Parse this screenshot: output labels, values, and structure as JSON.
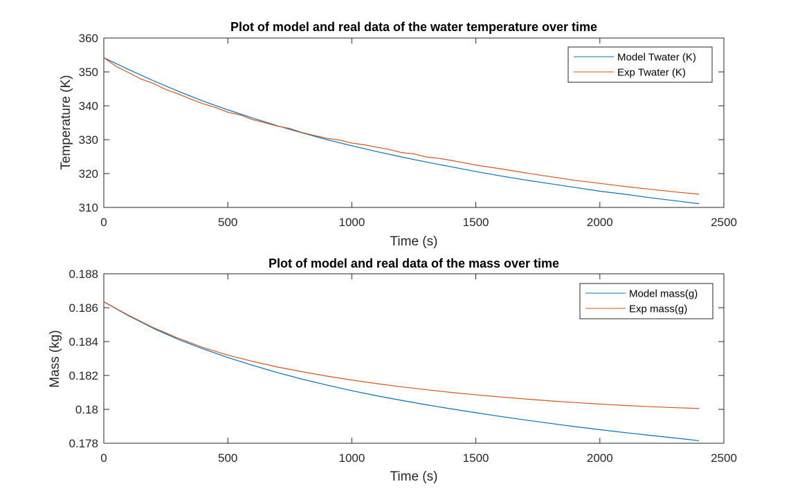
{
  "colors": {
    "model": "#0072BD",
    "exp": "#D95319",
    "axis": "#262626",
    "background": "#ffffff"
  },
  "chart_data": [
    {
      "type": "line",
      "title": "Plot of model and real data of the water temperature over time",
      "xlabel": "Time (s)",
      "ylabel": "Temperature (K)",
      "xlim": [
        0,
        2500
      ],
      "ylim": [
        310,
        360
      ],
      "xticks": [
        0,
        500,
        1000,
        1500,
        2000,
        2500
      ],
      "yticks": [
        310,
        320,
        330,
        340,
        350,
        360
      ],
      "xtick_labels": [
        "0",
        "500",
        "1000",
        "1500",
        "2000",
        "2500"
      ],
      "ytick_labels": [
        "310",
        "320",
        "330",
        "340",
        "350",
        "360"
      ],
      "grid": false,
      "legend_position": "top-right",
      "series": [
        {
          "name": "Model Twater (K)",
          "x": [
            0,
            100,
            200,
            300,
            400,
            500,
            600,
            700,
            800,
            900,
            1000,
            1100,
            1200,
            1300,
            1400,
            1500,
            1600,
            1700,
            1800,
            1900,
            2000,
            2100,
            2200,
            2300,
            2400
          ],
          "y": [
            354.2,
            350.7,
            347.4,
            344.3,
            341.4,
            338.8,
            336.4,
            334.1,
            332.0,
            330.0,
            328.2,
            326.5,
            324.9,
            323.4,
            322.0,
            320.6,
            319.3,
            318.1,
            317.0,
            315.9,
            314.8,
            313.9,
            312.9,
            312.0,
            311.1
          ]
        },
        {
          "name": "Exp Twater (K)",
          "x": [
            0,
            50,
            100,
            150,
            200,
            250,
            300,
            350,
            400,
            450,
            500,
            550,
            600,
            650,
            700,
            750,
            800,
            850,
            900,
            950,
            1000,
            1050,
            1100,
            1150,
            1200,
            1250,
            1300,
            1350,
            1400,
            1450,
            1500,
            1600,
            1700,
            1800,
            1900,
            2000,
            2100,
            2200,
            2300,
            2400
          ],
          "y": [
            354.2,
            351.6,
            349.8,
            347.9,
            346.6,
            344.8,
            343.5,
            342.0,
            340.6,
            339.5,
            338.1,
            337.3,
            335.9,
            335.0,
            334.0,
            333.3,
            332.1,
            331.2,
            330.4,
            329.9,
            329.0,
            328.5,
            327.8,
            327.1,
            326.2,
            325.8,
            324.9,
            324.5,
            323.9,
            323.2,
            322.5,
            321.4,
            320.2,
            319.1,
            318.0,
            317.1,
            316.2,
            315.4,
            314.6,
            313.9
          ]
        }
      ]
    },
    {
      "type": "line",
      "title": "Plot of model and real data of the mass over time",
      "xlabel": "Time (s)",
      "ylabel": "Mass (kg)",
      "xlim": [
        0,
        2500
      ],
      "ylim": [
        0.178,
        0.188
      ],
      "xticks": [
        0,
        500,
        1000,
        1500,
        2000,
        2500
      ],
      "yticks": [
        0.178,
        0.18,
        0.182,
        0.184,
        0.186,
        0.188
      ],
      "xtick_labels": [
        "0",
        "500",
        "1000",
        "1500",
        "2000",
        "2500"
      ],
      "ytick_labels": [
        "0.178",
        "0.18",
        "0.182",
        "0.184",
        "0.186",
        "0.188"
      ],
      "grid": false,
      "legend_position": "top-right",
      "series": [
        {
          "name": "Model mass(g)",
          "x": [
            0,
            100,
            200,
            300,
            400,
            500,
            600,
            700,
            800,
            900,
            1000,
            1100,
            1200,
            1300,
            1400,
            1500,
            1600,
            1700,
            1800,
            1900,
            2000,
            2100,
            2200,
            2300,
            2400
          ],
          "y": [
            0.18635,
            0.18552,
            0.18478,
            0.18413,
            0.18357,
            0.18306,
            0.1826,
            0.18217,
            0.18178,
            0.18143,
            0.1811,
            0.1808,
            0.18053,
            0.18027,
            0.18003,
            0.1798,
            0.17958,
            0.17937,
            0.17917,
            0.17898,
            0.1788,
            0.17863,
            0.17847,
            0.17831,
            0.17815
          ]
        },
        {
          "name": "Exp mass(g)",
          "x": [
            0,
            100,
            200,
            300,
            400,
            500,
            600,
            700,
            800,
            900,
            1000,
            1100,
            1200,
            1300,
            1400,
            1500,
            1600,
            1700,
            1800,
            1900,
            2000,
            2100,
            2200,
            2300,
            2400
          ],
          "y": [
            0.18635,
            0.18555,
            0.18482,
            0.1842,
            0.18365,
            0.1832,
            0.18283,
            0.1825,
            0.18222,
            0.18196,
            0.18173,
            0.18152,
            0.18133,
            0.18116,
            0.181,
            0.18086,
            0.18073,
            0.18061,
            0.1805,
            0.1804,
            0.18031,
            0.18023,
            0.18016,
            0.1801,
            0.18005
          ]
        }
      ]
    }
  ]
}
